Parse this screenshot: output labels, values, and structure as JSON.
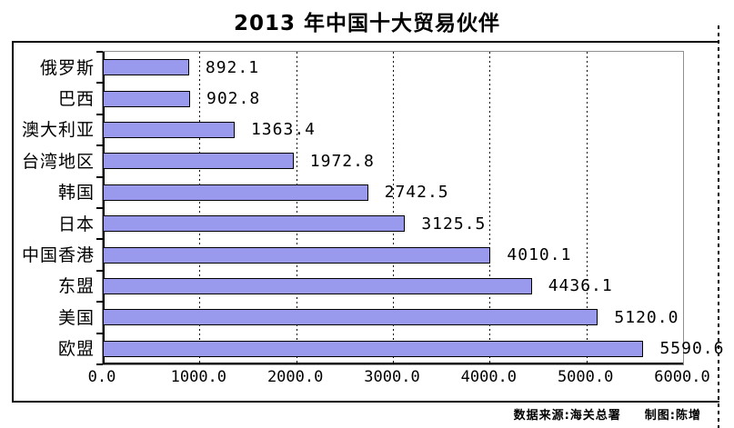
{
  "title": "2013 年中国十大贸易伙伴",
  "chart_data": {
    "type": "bar",
    "orientation": "horizontal",
    "title": "2013 年中国十大贸易伙伴",
    "categories": [
      "俄罗斯",
      "巴西",
      "澳大利亚",
      "台湾地区",
      "韩国",
      "日本",
      "中国香港",
      "东盟",
      "美国",
      "欧盟"
    ],
    "values": [
      892.1,
      902.8,
      1363.4,
      1972.8,
      2742.5,
      3125.5,
      4010.1,
      4436.1,
      5120.0,
      5590.6
    ],
    "value_labels": [
      "892.1",
      "902.8",
      "1363.4",
      "1972.8",
      "2742.5",
      "3125.5",
      "4010.1",
      "4436.1",
      "5120.0",
      "5590.6"
    ],
    "xlim": [
      0,
      6000
    ],
    "x_ticks": [
      0,
      1000,
      2000,
      3000,
      4000,
      5000,
      6000
    ],
    "x_tick_labels": [
      "0.0",
      "1000.0",
      "2000.0",
      "3000.0",
      "4000.0",
      "5000.0",
      "6000.0"
    ],
    "xlabel": "",
    "ylabel": "",
    "grid": "vertical-dashed",
    "legend": "none",
    "data_labels": true,
    "bar_color": "#9999EE",
    "bar_border_color": "#000000",
    "plot_border_color": "#909090"
  },
  "footer": {
    "source": "数据来源:海关总署",
    "credit": "制图:陈增"
  }
}
